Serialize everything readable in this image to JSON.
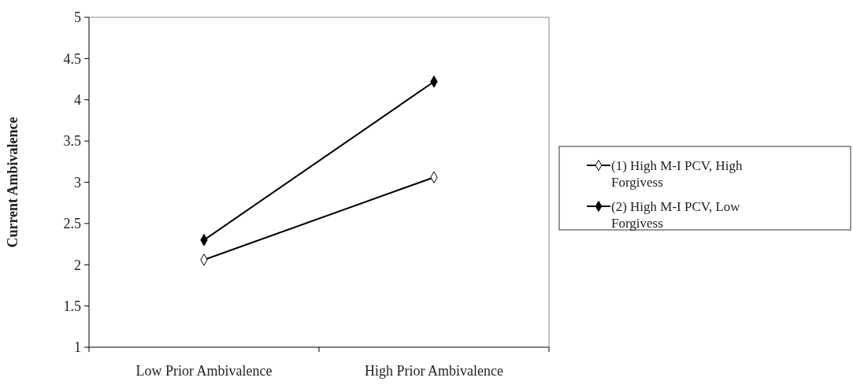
{
  "chart_data": {
    "type": "line",
    "ylabel": "Current Ambivalence",
    "categories": [
      "Low Prior Ambivalence",
      "High Prior Ambivalence"
    ],
    "series": [
      {
        "name": "(1) High M-I PCV, High Forgivess",
        "color": "#000000",
        "values": [
          2.06,
          3.06
        ],
        "marker": "diamond"
      },
      {
        "name": "(2) High M-I PCV, Low Forgivess",
        "color": "#000000",
        "values": [
          2.3,
          4.22
        ],
        "marker": "diamond"
      }
    ],
    "ylim": [
      1,
      5
    ],
    "yticks": [
      1,
      1.5,
      2,
      2.5,
      3,
      3.5,
      4,
      4.5,
      5
    ],
    "grid": false,
    "legend": "right",
    "line_style": "solid"
  }
}
